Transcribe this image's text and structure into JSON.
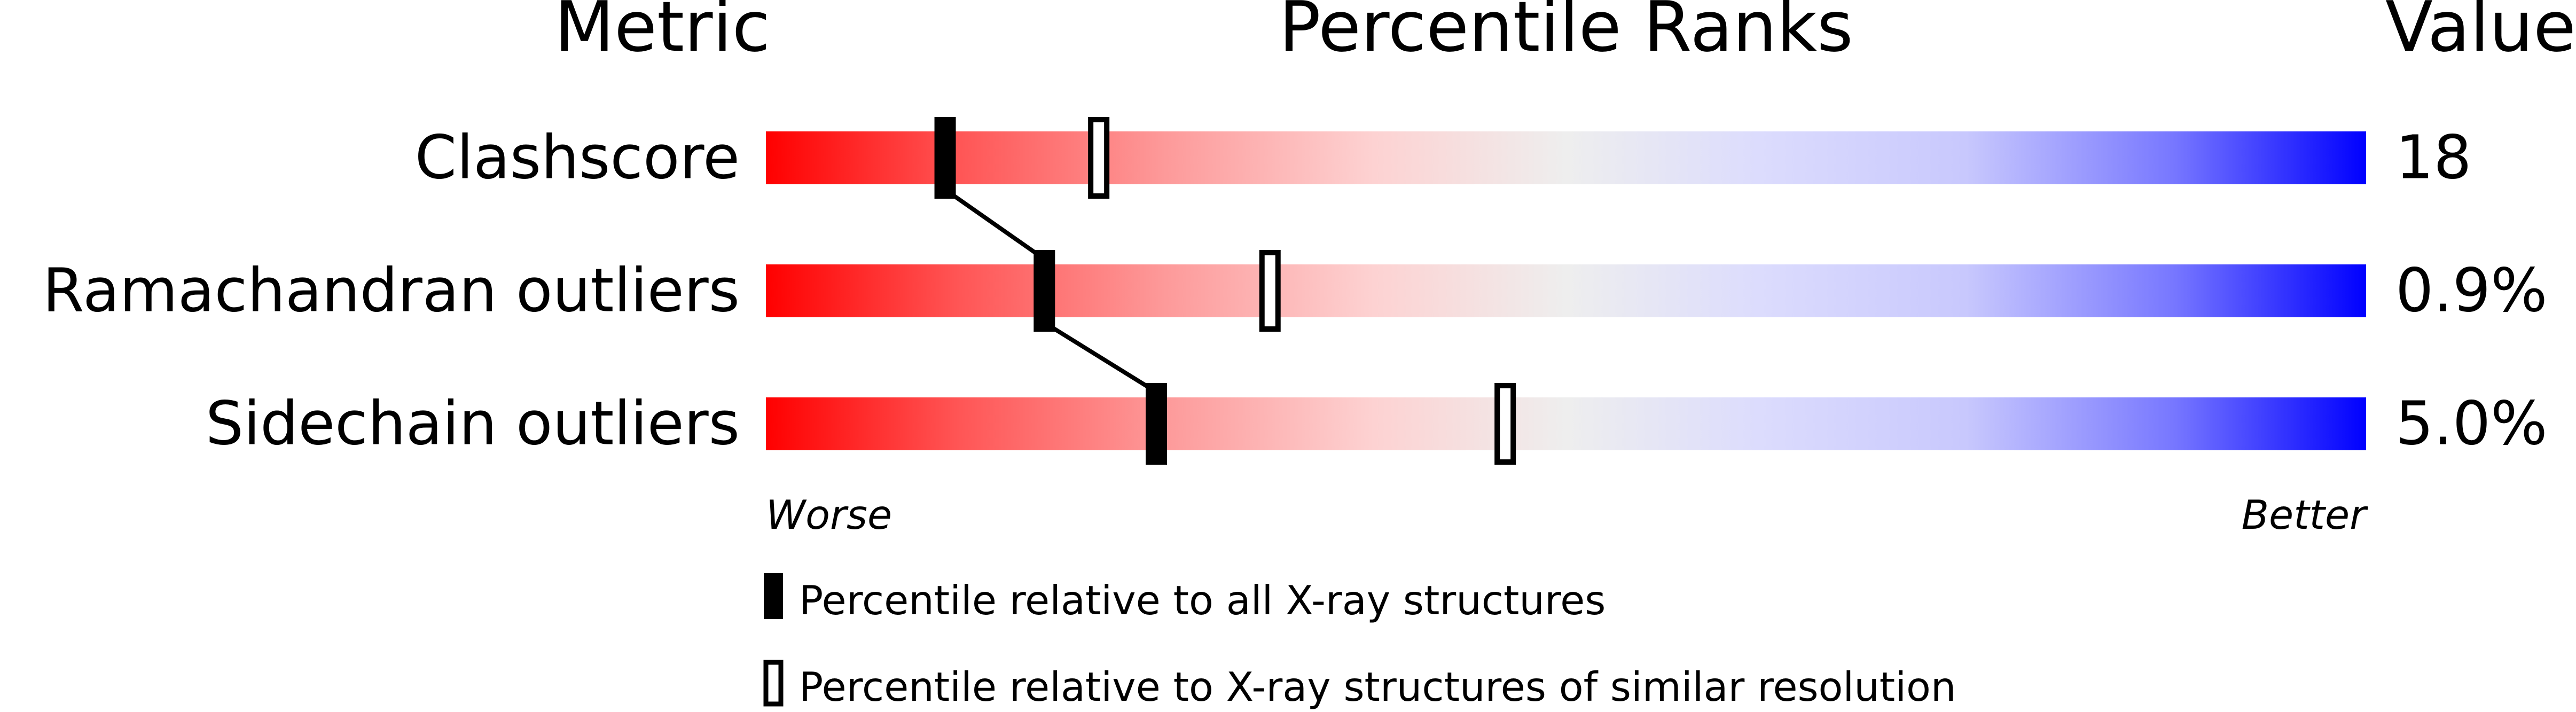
{
  "chart_data": {
    "type": "bar",
    "headers": {
      "metric": "Metric",
      "percentile": "Percentile Ranks",
      "value": "Value"
    },
    "xlim": [
      0,
      100
    ],
    "rows": [
      {
        "metric": "Clashscore",
        "value": "18",
        "percentile_all": 11.2,
        "percentile_similar": 20.8
      },
      {
        "metric": "Ramachandran outliers",
        "value": "0.9%",
        "percentile_all": 17.4,
        "percentile_similar": 31.5
      },
      {
        "metric": "Sidechain outliers",
        "value": "5.0%",
        "percentile_all": 24.4,
        "percentile_similar": 46.2
      }
    ],
    "axis_left_label": "Worse",
    "axis_right_label": "Better",
    "legend": [
      {
        "label": "Percentile relative to all X-ray structures",
        "marker": "filled"
      },
      {
        "label": "Percentile relative to X-ray structures of similar resolution",
        "marker": "open"
      }
    ],
    "colors": {
      "worse": "#ff0000",
      "middle": "#eeeeee",
      "better": "#0000ff",
      "marker": "#000000"
    }
  }
}
